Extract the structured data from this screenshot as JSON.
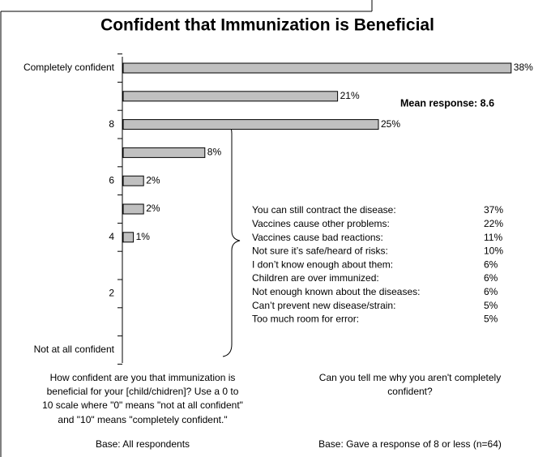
{
  "chart_data": {
    "type": "bar",
    "orientation": "horizontal",
    "title": "Confident that Immunization is Beneficial",
    "categories": [
      "Completely confident",
      null,
      "8",
      null,
      "6",
      null,
      "4",
      null,
      "2",
      null,
      "Not at all confident"
    ],
    "values": [
      38,
      21,
      25,
      8,
      2,
      2,
      1,
      null,
      null,
      null,
      null
    ],
    "value_labels": [
      "38%",
      "21%",
      "25%",
      "8%",
      "2%",
      "2%",
      "1%",
      null,
      null,
      null,
      null
    ],
    "color": "#c0c0c0",
    "annotation": "Mean response: 8.6",
    "reasons": [
      {
        "label": "You can still contract the disease:",
        "value": "37%"
      },
      {
        "label": "Vaccines cause other problems:",
        "value": "22%"
      },
      {
        "label": "Vaccines cause bad reactions:",
        "value": "11%"
      },
      {
        "label": "Not sure it’s safe/heard of risks:",
        "value": "10%"
      },
      {
        "label": "I don’t know enough about them:",
        "value": "6%"
      },
      {
        "label": "Children are over immunized:",
        "value": "6%"
      },
      {
        "label": "Not enough known about the diseases:",
        "value": "6%"
      },
      {
        "label": "Can’t prevent new disease/strain:",
        "value": "5%"
      },
      {
        "label": "Too much room for error:",
        "value": "5%"
      }
    ],
    "left_note": [
      "How confident are you that immunization is",
      "beneficial for your [child/chidren]?  Use a 0 to",
      "10 scale where \"0\" means \"not at all confident\"",
      "and \"10\" means \"completely confident.\"",
      "Base: All respondents"
    ],
    "right_note": [
      "Can you tell me why you aren't completely",
      "confident?",
      "Base: Gave a response of 8 or less (n=64)"
    ]
  }
}
